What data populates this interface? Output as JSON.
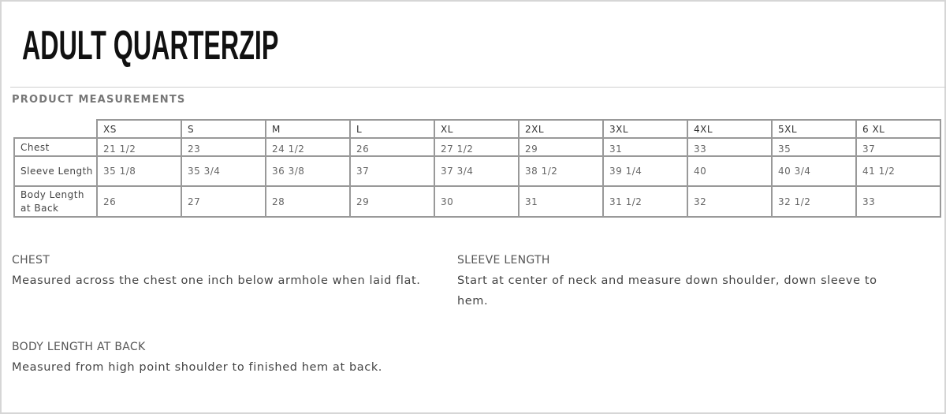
{
  "title": "ADULT QUARTERZIP",
  "section_label": "PRODUCT MEASUREMENTS",
  "table": {
    "sizes": [
      "XS",
      "S",
      "M",
      "L",
      "XL",
      "2XL",
      "3XL",
      "4XL",
      "5XL",
      "6 XL"
    ],
    "rows": [
      {
        "label": "Chest",
        "values": [
          "21 1/2",
          "23",
          "24 1/2",
          "26",
          "27 1/2",
          "29",
          "31",
          "33",
          "35",
          "37"
        ]
      },
      {
        "label": "Sleeve Length",
        "values": [
          "35 1/8",
          "35 3/4",
          "36 3/8",
          "37",
          "37 3/4",
          "38 1/2",
          "39 1/4",
          "40",
          "40 3/4",
          "41 1/2"
        ]
      },
      {
        "label": "Body Length at Back",
        "values": [
          "26",
          "27",
          "28",
          "29",
          "30",
          "31",
          "31 1/2",
          "32",
          "32 1/2",
          "33"
        ]
      }
    ]
  },
  "descriptions": {
    "chest": {
      "heading": "CHEST",
      "text": "Measured across the chest one inch below armhole when laid flat."
    },
    "sleeve": {
      "heading": "SLEEVE LENGTH",
      "text": "Start at center of neck and measure down shoulder, down sleeve to hem."
    },
    "body": {
      "heading": "BODY LENGTH AT BACK",
      "text": "Measured from high point shoulder to finished hem at back."
    }
  }
}
